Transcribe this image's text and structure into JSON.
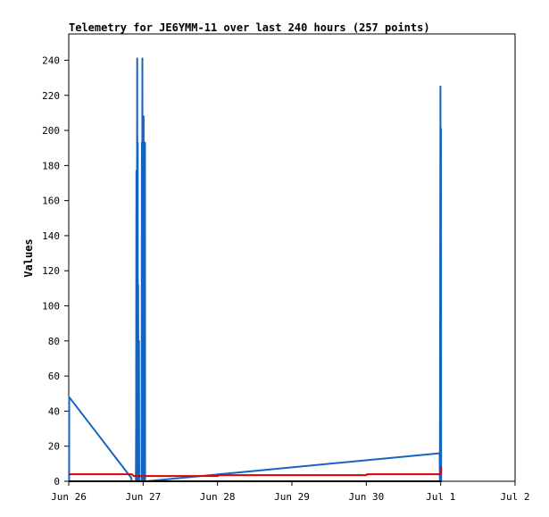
{
  "chart_data": {
    "type": "line",
    "title": "Telemetry for JE6YMM-11 over last 240 hours (257 points)",
    "xlabel": "",
    "ylabel": "Values",
    "xlim": [
      "2023-06-26T00:00",
      "2023-07-02T00:00"
    ],
    "ylim": [
      0,
      255
    ],
    "yticks": [
      0,
      20,
      40,
      60,
      80,
      100,
      120,
      140,
      160,
      180,
      200,
      220,
      240
    ],
    "xticks": [
      {
        "label": "Jun 26",
        "t": "2023-06-26T00:00"
      },
      {
        "label": "Jun 27",
        "t": "2023-06-27T00:00"
      },
      {
        "label": "Jun 28",
        "t": "2023-06-28T00:00"
      },
      {
        "label": "Jun 29",
        "t": "2023-06-29T00:00"
      },
      {
        "label": "Jun 30",
        "t": "2023-06-30T00:00"
      },
      {
        "label": "Jul 1",
        "t": "2023-07-01T00:00"
      },
      {
        "label": "Jul 2",
        "t": "2023-07-02T00:00"
      }
    ],
    "grid": false,
    "legend": "none",
    "series": [
      {
        "color": "#1565c0",
        "points": [
          [
            "2023-06-26T00:07",
            0
          ],
          [
            "2023-06-26T00:08",
            32
          ],
          [
            "2023-06-26T00:09",
            48
          ],
          [
            "2023-06-26T20:10",
            2
          ],
          [
            "2023-06-26T20:20",
            0
          ],
          [
            "2023-06-26T21:40",
            0
          ],
          [
            "2023-06-26T21:45",
            32
          ],
          [
            "2023-06-26T21:50",
            177
          ],
          [
            "2023-06-26T21:55",
            0
          ],
          [
            "2023-06-26T22:05",
            241
          ],
          [
            "2023-06-26T22:10",
            0
          ],
          [
            "2023-06-26T22:15",
            193
          ],
          [
            "2023-06-26T22:20",
            0
          ],
          [
            "2023-06-26T22:25",
            112
          ],
          [
            "2023-06-26T22:30",
            0
          ],
          [
            "2023-06-26T22:40",
            80
          ],
          [
            "2023-06-26T22:45",
            0
          ],
          [
            "2023-06-26T23:30",
            0
          ],
          [
            "2023-06-26T23:35",
            193
          ],
          [
            "2023-06-26T23:40",
            0
          ],
          [
            "2023-06-26T23:45",
            241
          ],
          [
            "2023-06-26T23:50",
            0
          ],
          [
            "2023-06-27T00:10",
            208
          ],
          [
            "2023-06-27T00:15",
            0
          ],
          [
            "2023-06-27T00:35",
            193
          ],
          [
            "2023-06-27T00:40",
            0
          ],
          [
            "2023-06-27T01:00",
            0
          ],
          [
            "2023-06-30T23:40",
            16
          ],
          [
            "2023-06-30T23:45",
            0
          ],
          [
            "2023-06-30T23:50",
            128
          ],
          [
            "2023-06-30T23:55",
            225
          ],
          [
            "2023-07-01T00:00",
            0
          ],
          [
            "2023-07-01T00:05",
            201
          ],
          [
            "2023-07-01T00:10",
            0
          ]
        ]
      },
      {
        "color": "#dd0000",
        "points": [
          [
            "2023-06-26T00:07",
            4
          ],
          [
            "2023-06-26T20:20",
            4
          ],
          [
            "2023-06-26T21:00",
            3
          ],
          [
            "2023-06-28T00:10",
            3
          ],
          [
            "2023-06-28T00:20",
            3.5
          ],
          [
            "2023-06-30T00:05",
            3.5
          ],
          [
            "2023-06-30T00:15",
            4
          ],
          [
            "2023-07-01T00:05",
            4
          ],
          [
            "2023-07-01T00:10",
            8
          ]
        ]
      },
      {
        "color": "#000000",
        "points": [
          [
            "2023-06-26T00:07",
            0
          ],
          [
            "2023-07-01T00:10",
            0
          ]
        ]
      }
    ]
  }
}
